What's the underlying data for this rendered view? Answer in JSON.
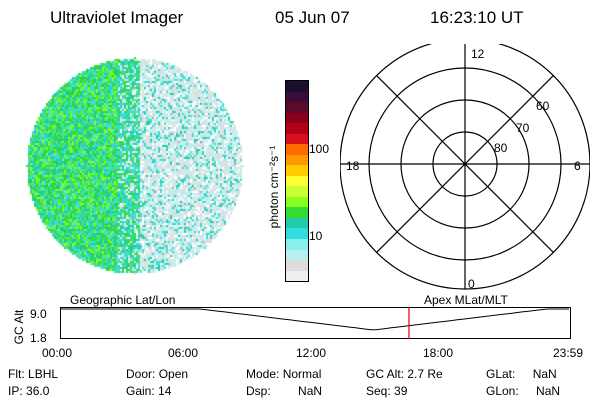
{
  "header": {
    "title": "Ultraviolet Imager",
    "date": "05 Jun 07",
    "time": "16:23:10 UT"
  },
  "colorbar": {
    "unit_label": "photon cm⁻²s⁻¹",
    "tick_labels": [
      "100",
      "10"
    ],
    "colors": [
      "#1a0f2e",
      "#3b0b3a",
      "#5a0a2a",
      "#8a001c",
      "#b40015",
      "#d8101a",
      "#ff6a00",
      "#ff9900",
      "#ffcc00",
      "#ffff33",
      "#ccff33",
      "#88ff22",
      "#33dd33",
      "#22ccaa",
      "#33dddd",
      "#88eeee",
      "#bbeeee",
      "#dddddd",
      "#eeeeee"
    ]
  },
  "polar_plot": {
    "mlt_labels": {
      "top": "12",
      "left": "18",
      "right": "6",
      "bottom": "0"
    },
    "lat_labels": [
      "60",
      "70",
      "80"
    ]
  },
  "orbit_panel": {
    "left_label": "Geographic Lat/Lon",
    "right_label": "Apex MLat/MLT",
    "y_axis_label": "GC Alt",
    "y_ticks": [
      "9.0",
      "1.8"
    ],
    "x_ticks": [
      "00:00",
      "06:00",
      "12:00",
      "18:00",
      "23:59"
    ],
    "marker_color": "#dd0000",
    "marker_fraction": 0.685
  },
  "info": {
    "row1": [
      {
        "label": "Flt:",
        "value": "LBHL"
      },
      {
        "label": "Door:",
        "value": "Open"
      },
      {
        "label": "Mode:",
        "value": "Normal"
      },
      {
        "label": "GC Alt:",
        "value": "2.7 Re"
      },
      {
        "label": "GLat:",
        "value": "NaN"
      }
    ],
    "row2": [
      {
        "label": "IP:",
        "value": "36.0"
      },
      {
        "label": "Gain:",
        "value": "14"
      },
      {
        "label": "Dsp:",
        "value": "NaN"
      },
      {
        "label": "Seq:",
        "value": "39"
      },
      {
        "label": "GLon:",
        "value": "NaN"
      }
    ]
  }
}
